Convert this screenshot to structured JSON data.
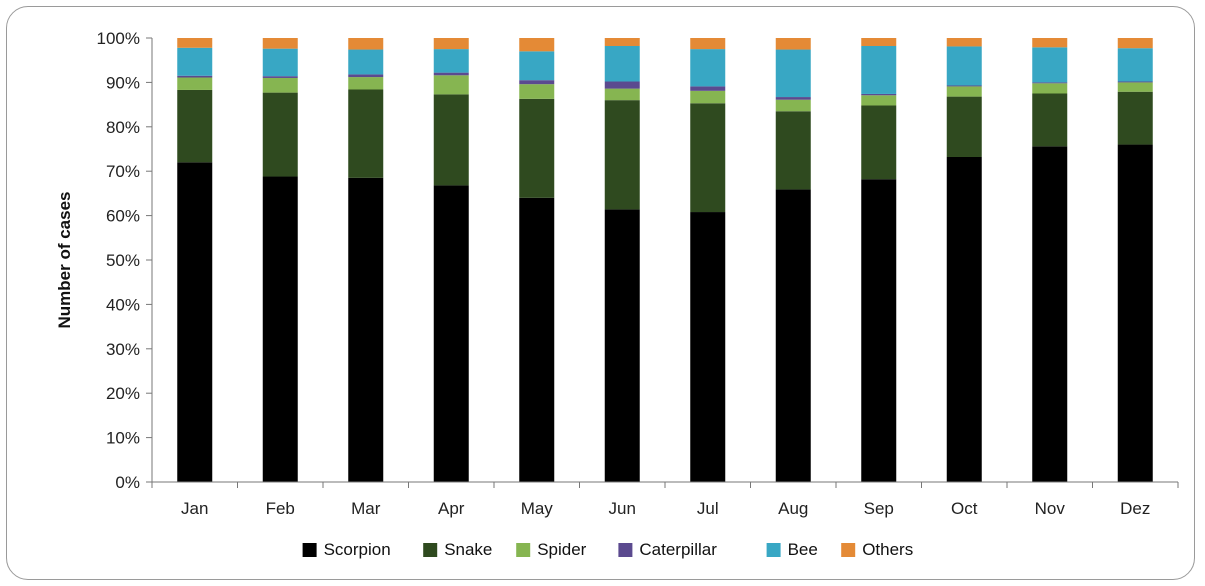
{
  "chart_data": {
    "type": "bar",
    "stacked": true,
    "categories": [
      "Jan",
      "Feb",
      "Mar",
      "Apr",
      "May",
      "Jun",
      "Jul",
      "Aug",
      "Sep",
      "Oct",
      "Nov",
      "Dez"
    ],
    "ylabel": "Number of cases",
    "ylim": [
      0,
      100
    ],
    "yticks": [
      "0%",
      "10%",
      "20%",
      "30%",
      "40%",
      "50%",
      "60%",
      "70%",
      "80%",
      "90%",
      "100%"
    ],
    "legend_position": "bottom",
    "series": [
      {
        "name": "Scorpion",
        "color": "#000000",
        "values": [
          72,
          68.8,
          68.5,
          66.8,
          64,
          61.4,
          60.8,
          65.9,
          68.2,
          73.2,
          75.6,
          76.0
        ]
      },
      {
        "name": "Snake",
        "color": "#2f4a1f",
        "values": [
          16.3,
          18.9,
          19.9,
          20.5,
          22.3,
          24.6,
          24.5,
          17.6,
          16.6,
          13.6,
          11.9,
          11.9
        ]
      },
      {
        "name": "Spider",
        "color": "#86b551",
        "values": [
          2.8,
          3.3,
          2.8,
          4.3,
          3.3,
          2.6,
          2.8,
          2.6,
          2.3,
          2.3,
          2.3,
          2.1
        ]
      },
      {
        "name": "Caterpillar",
        "color": "#5b4a8f",
        "values": [
          0.4,
          0.4,
          0.6,
          0.6,
          0.9,
          1.6,
          1.0,
          0.6,
          0.3,
          0.2,
          0.2,
          0.2
        ]
      },
      {
        "name": "Bee",
        "color": "#38a7c4",
        "values": [
          6.3,
          6.2,
          5.6,
          5.3,
          6.5,
          8.0,
          8.4,
          10.7,
          10.8,
          8.8,
          7.9,
          7.5
        ]
      },
      {
        "name": "Others",
        "color": "#e48a36",
        "values": [
          2.2,
          2.4,
          2.6,
          2.5,
          3.0,
          1.8,
          2.5,
          2.6,
          1.8,
          1.9,
          2.1,
          2.3
        ]
      }
    ]
  }
}
